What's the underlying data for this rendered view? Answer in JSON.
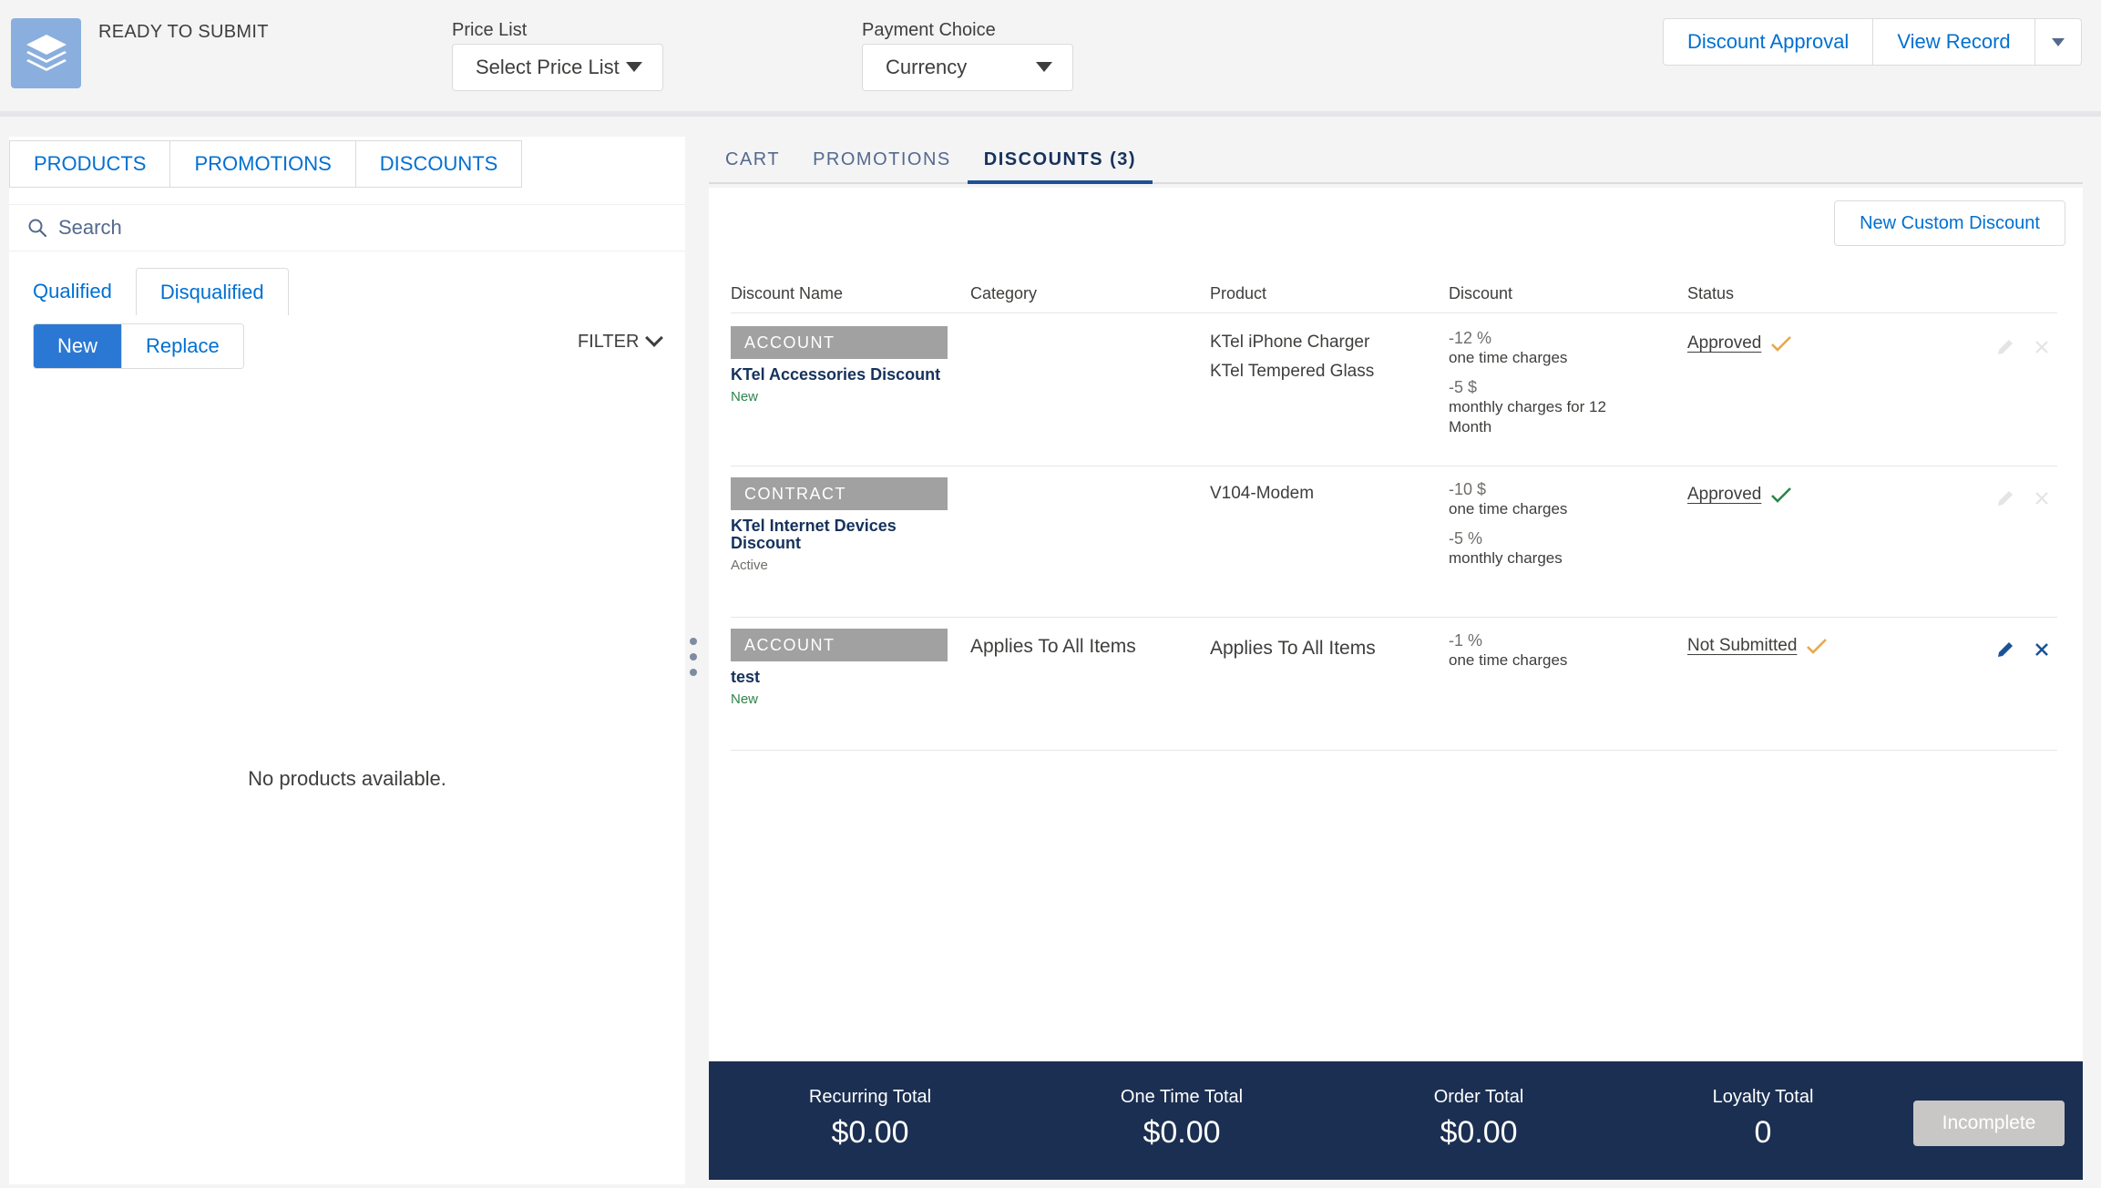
{
  "header": {
    "status": "READY TO SUBMIT",
    "price_list_label": "Price List",
    "price_list_value": "Select Price List",
    "payment_label": "Payment Choice",
    "payment_value": "Currency",
    "actions": [
      "Discount Approval",
      "View Record"
    ]
  },
  "left": {
    "tabs": [
      "PRODUCTS",
      "PROMOTIONS",
      "DISCOUNTS"
    ],
    "search_placeholder": "Search",
    "qual_tabs": [
      "Qualified",
      "Disqualified"
    ],
    "mode_buttons": [
      "New",
      "Replace"
    ],
    "filter_label": "FILTER",
    "empty_text": "No products available."
  },
  "right": {
    "tabs": [
      "CART",
      "PROMOTIONS",
      "DISCOUNTS (3)"
    ],
    "new_custom_label": "New Custom Discount",
    "columns": [
      "Discount Name",
      "Category",
      "Product",
      "Discount",
      "Status"
    ],
    "rows": [
      {
        "badge": "ACCOUNT",
        "name": "KTel Accessories Discount",
        "state": "New",
        "category": "",
        "products": [
          "KTel iPhone Charger",
          "KTel Tempered Glass"
        ],
        "disc1_amt": "-12 %",
        "disc1_desc": "one time charges",
        "disc2_amt": "-5 $",
        "disc2_desc": "monthly charges for 12 Month",
        "status": "Approved"
      },
      {
        "badge": "CONTRACT",
        "name": "KTel Internet Devices Discount",
        "state": "Active",
        "category": "",
        "products": [
          "V104-Modem"
        ],
        "disc1_amt": "-10 $",
        "disc1_desc": "one time charges",
        "disc2_amt": "-5 %",
        "disc2_desc": "monthly charges",
        "status": "Approved"
      },
      {
        "badge": "ACCOUNT",
        "name": "test",
        "state": "New",
        "category": "Applies To All Items",
        "products": [
          "Applies To All Items"
        ],
        "disc1_amt": "-1 %",
        "disc1_desc": "one time charges",
        "status": "Not Submitted"
      }
    ]
  },
  "footer": {
    "totals": [
      {
        "label": "Recurring Total",
        "value": "$0.00"
      },
      {
        "label": "One Time Total",
        "value": "$0.00"
      },
      {
        "label": "Order Total",
        "value": "$0.00"
      },
      {
        "label": "Loyalty Total",
        "value": "0"
      }
    ],
    "submit_label": "Incomplete"
  },
  "colors": {
    "accent": "#0070d2",
    "footer_bg": "#1b2f52",
    "check_pending": "#e8a84a",
    "check_approved": "#2e844a"
  }
}
